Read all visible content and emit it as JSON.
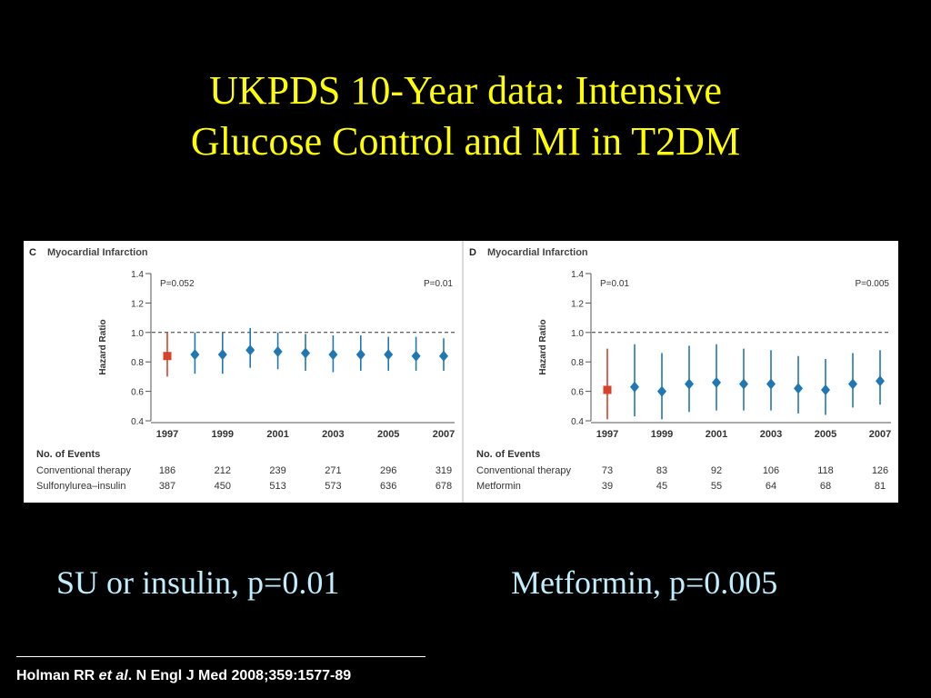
{
  "slide": {
    "title_line1": "UKPDS 10-Year data: Intensive",
    "title_line2": "Glucose Control and MI in T2DM",
    "caption_left": "SU or insulin, p=0.01",
    "caption_right": "Metformin, p=0.005",
    "reference_pre": "Holman RR ",
    "reference_em": "et al",
    "reference_post": ". N Engl J Med 2008;359:1577-89"
  },
  "colors": {
    "title": "#ffff00",
    "caption": "#bfefff",
    "first_point": "#d9412b",
    "points": "#1f77b4"
  },
  "chart_data": [
    {
      "type": "scatter",
      "panel_letter": "C",
      "title": "Myocardial Infarction",
      "ylabel": "Hazard Ratio",
      "ylim": [
        0.4,
        1.4
      ],
      "yticks": [
        "0.4",
        "0.6",
        "0.8",
        "1.0",
        "1.2",
        "1.4"
      ],
      "reference_line": 1.0,
      "xticks": [
        "1997",
        "1999",
        "2001",
        "2003",
        "2005",
        "2007"
      ],
      "p_left": "P=0.052",
      "p_right": "P=0.01",
      "points": [
        {
          "x": 1997,
          "y": 0.84,
          "lo": 0.7,
          "hi": 1.0
        },
        {
          "x": 1998,
          "y": 0.85,
          "lo": 0.72,
          "hi": 1.0
        },
        {
          "x": 1999,
          "y": 0.85,
          "lo": 0.72,
          "hi": 1.0
        },
        {
          "x": 2000,
          "y": 0.88,
          "lo": 0.76,
          "hi": 1.03
        },
        {
          "x": 2001,
          "y": 0.87,
          "lo": 0.75,
          "hi": 1.0
        },
        {
          "x": 2002,
          "y": 0.86,
          "lo": 0.74,
          "hi": 0.99
        },
        {
          "x": 2003,
          "y": 0.85,
          "lo": 0.73,
          "hi": 0.98
        },
        {
          "x": 2004,
          "y": 0.85,
          "lo": 0.74,
          "hi": 0.98
        },
        {
          "x": 2005,
          "y": 0.85,
          "lo": 0.74,
          "hi": 0.97
        },
        {
          "x": 2006,
          "y": 0.84,
          "lo": 0.74,
          "hi": 0.97
        },
        {
          "x": 2007,
          "y": 0.84,
          "lo": 0.74,
          "hi": 0.96
        }
      ],
      "events_header": "No. of Events",
      "events": [
        {
          "label": "Conventional therapy",
          "values": [
            "186",
            "212",
            "239",
            "271",
            "296",
            "319"
          ]
        },
        {
          "label": "Sulfonylurea–insulin",
          "values": [
            "387",
            "450",
            "513",
            "573",
            "636",
            "678"
          ]
        }
      ]
    },
    {
      "type": "scatter",
      "panel_letter": "D",
      "title": "Myocardial Infarction",
      "ylabel": "Hazard Ratio",
      "ylim": [
        0.4,
        1.4
      ],
      "yticks": [
        "0.4",
        "0.6",
        "0.8",
        "1.0",
        "1.2",
        "1.4"
      ],
      "reference_line": 1.0,
      "xticks": [
        "1997",
        "1999",
        "2001",
        "2003",
        "2005",
        "2007"
      ],
      "p_left": "P=0.01",
      "p_right": "P=0.005",
      "points": [
        {
          "x": 1997,
          "y": 0.61,
          "lo": 0.41,
          "hi": 0.89
        },
        {
          "x": 1998,
          "y": 0.63,
          "lo": 0.43,
          "hi": 0.92
        },
        {
          "x": 1999,
          "y": 0.6,
          "lo": 0.41,
          "hi": 0.86
        },
        {
          "x": 2000,
          "y": 0.65,
          "lo": 0.46,
          "hi": 0.91
        },
        {
          "x": 2001,
          "y": 0.66,
          "lo": 0.47,
          "hi": 0.92
        },
        {
          "x": 2002,
          "y": 0.65,
          "lo": 0.47,
          "hi": 0.89
        },
        {
          "x": 2003,
          "y": 0.65,
          "lo": 0.47,
          "hi": 0.88
        },
        {
          "x": 2004,
          "y": 0.62,
          "lo": 0.45,
          "hi": 0.84
        },
        {
          "x": 2005,
          "y": 0.61,
          "lo": 0.44,
          "hi": 0.82
        },
        {
          "x": 2006,
          "y": 0.65,
          "lo": 0.49,
          "hi": 0.86
        },
        {
          "x": 2007,
          "y": 0.67,
          "lo": 0.51,
          "hi": 0.88
        }
      ],
      "events_header": "No. of Events",
      "events": [
        {
          "label": "Conventional therapy",
          "values": [
            "73",
            "83",
            "92",
            "106",
            "118",
            "126"
          ]
        },
        {
          "label": "Metformin",
          "values": [
            "39",
            "45",
            "55",
            "64",
            "68",
            "81"
          ]
        }
      ]
    }
  ]
}
